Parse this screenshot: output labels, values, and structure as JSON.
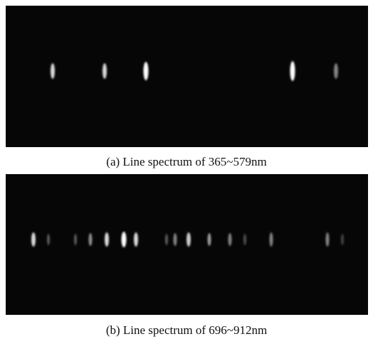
{
  "figure": {
    "panels": [
      {
        "caption": "(a) Line spectrum of 365~579nm"
      },
      {
        "caption": "(b) Line spectrum of 696~912nm"
      }
    ]
  }
}
